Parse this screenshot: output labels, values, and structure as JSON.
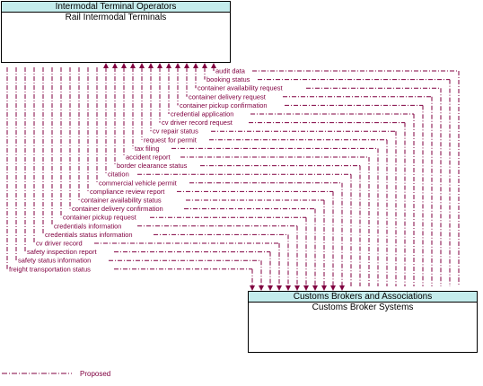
{
  "source_node": {
    "header": "Intermodal Terminal Operators",
    "title": "Rail Intermodal Terminals"
  },
  "target_node": {
    "header": "Customs Brokers and Associations",
    "title": "Customs Broker Systems"
  },
  "flow_color": "#800040",
  "header_color": "#c4ecec",
  "flows": [
    {
      "label": "audit data",
      "direction": "right-to-left"
    },
    {
      "label": "booking status",
      "direction": "right-to-left"
    },
    {
      "label": "container availability request",
      "direction": "right-to-left"
    },
    {
      "label": "container delivery request",
      "direction": "right-to-left"
    },
    {
      "label": "container pickup confirmation",
      "direction": "right-to-left"
    },
    {
      "label": "credential application",
      "direction": "right-to-left"
    },
    {
      "label": "cv driver record request",
      "direction": "right-to-left"
    },
    {
      "label": "cv repair status",
      "direction": "right-to-left"
    },
    {
      "label": "request for permit",
      "direction": "right-to-left"
    },
    {
      "label": "tax filing",
      "direction": "right-to-left"
    },
    {
      "label": "accident report",
      "direction": "right-to-left"
    },
    {
      "label": "border clearance status",
      "direction": "right-to-left"
    },
    {
      "label": "citation",
      "direction": "right-to-left"
    },
    {
      "label": "commercial vehicle permit",
      "direction": "left-to-right"
    },
    {
      "label": "compliance review report",
      "direction": "left-to-right"
    },
    {
      "label": "container availability status",
      "direction": "left-to-right"
    },
    {
      "label": "container delivery confirmation",
      "direction": "left-to-right"
    },
    {
      "label": "container pickup request",
      "direction": "left-to-right"
    },
    {
      "label": "credentials information",
      "direction": "left-to-right"
    },
    {
      "label": "credentials status information",
      "direction": "left-to-right"
    },
    {
      "label": "cv driver record",
      "direction": "left-to-right"
    },
    {
      "label": "safety inspection report",
      "direction": "left-to-right"
    },
    {
      "label": "safety status information",
      "direction": "left-to-right"
    },
    {
      "label": "freight transportation status",
      "direction": "left-to-right"
    }
  ],
  "legend": {
    "label": "Proposed"
  }
}
